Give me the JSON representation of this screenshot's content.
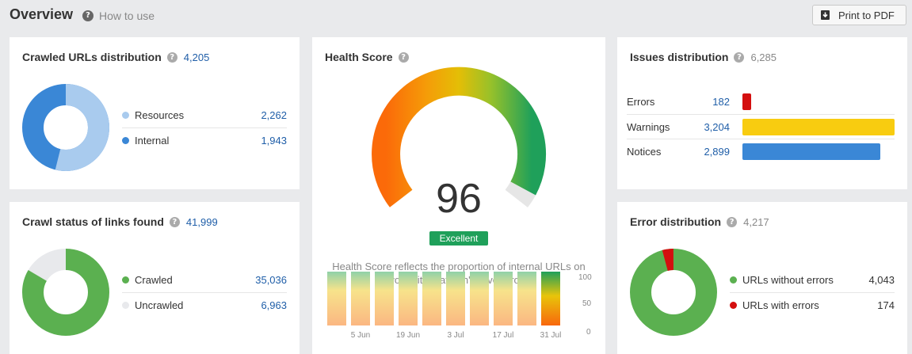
{
  "header": {
    "title": "Overview",
    "help": "How to use",
    "print": "Print to PDF"
  },
  "crawled_urls": {
    "title": "Crawled URLs distribution",
    "count": "4,205",
    "items": [
      {
        "label": "Resources",
        "value": "2,262",
        "color": "#a9cbee"
      },
      {
        "label": "Internal",
        "value": "1,943",
        "color": "#3a87d6"
      }
    ]
  },
  "crawl_status": {
    "title": "Crawl status of links found",
    "count": "41,999",
    "items": [
      {
        "label": "Crawled",
        "value": "35,036",
        "color": "#5bb050"
      },
      {
        "label": "Uncrawled",
        "value": "6,963",
        "color": "#e8e9ec"
      }
    ]
  },
  "health": {
    "title": "Health Score",
    "score": "96",
    "badge": "Excellent",
    "description": "Health Score reflects the proportion of internal URLs on your site that don't have errors",
    "yticks": [
      "100",
      "50",
      "0"
    ],
    "xticks": [
      "5 Jun",
      "19 Jun",
      "3 Jul",
      "17 Jul",
      "31 Jul"
    ]
  },
  "issues": {
    "title": "Issues distribution",
    "count": "6,285",
    "items": [
      {
        "label": "Errors",
        "value": "182",
        "color": "#d40f0f"
      },
      {
        "label": "Warnings",
        "value": "3,204",
        "color": "#f8cc10"
      },
      {
        "label": "Notices",
        "value": "2,899",
        "color": "#3a87d6"
      }
    ]
  },
  "errors": {
    "title": "Error distribution",
    "count": "4,217",
    "items": [
      {
        "label": "URLs without errors",
        "value": "4,043",
        "color": "#5bb050"
      },
      {
        "label": "URLs with errors",
        "value": "174",
        "color": "#d40f0f"
      }
    ]
  }
}
